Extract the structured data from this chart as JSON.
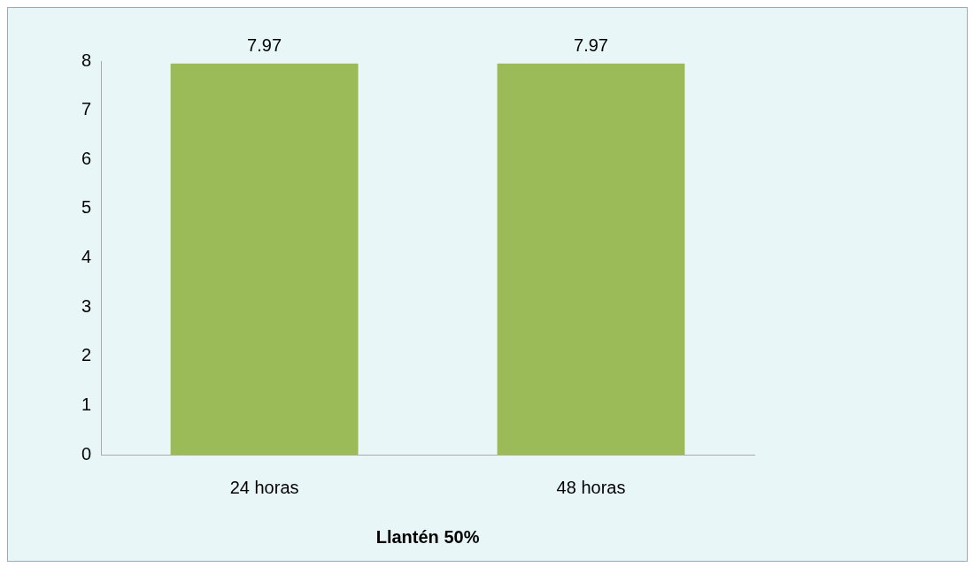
{
  "chart_data": {
    "type": "bar",
    "xlabel": "Llantén 50%",
    "categories": [
      "24 horas",
      "48 horas"
    ],
    "values": [
      7.97,
      7.97
    ],
    "color": "#9bbb59",
    "ylim": [
      0,
      8
    ],
    "yticks": [
      0,
      1,
      2,
      3,
      4,
      5,
      6,
      7,
      8
    ],
    "grid": false,
    "legend": false,
    "data_labels": true
  }
}
